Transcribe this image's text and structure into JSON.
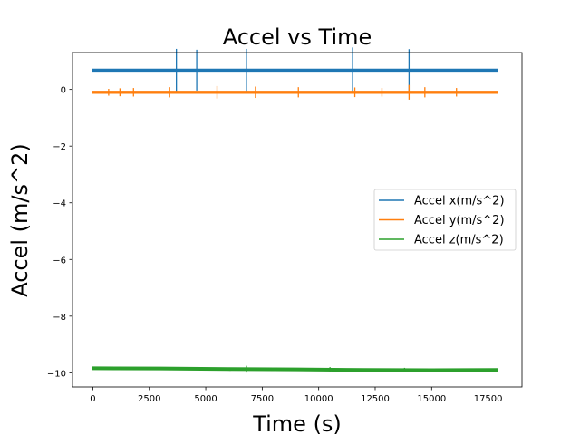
{
  "chart_data": {
    "type": "line",
    "title": "Accel vs Time",
    "xlabel": "Time (s)",
    "ylabel": "Accel (m/s^2)",
    "xlim": [
      -900,
      19000
    ],
    "ylim": [
      -10.5,
      1.3
    ],
    "x_ticks": [
      0,
      2500,
      5000,
      7500,
      10000,
      12500,
      15000,
      17500
    ],
    "x_tick_labels": [
      "0",
      "2500",
      "5000",
      "7500",
      "10000",
      "12500",
      "15000",
      "17500"
    ],
    "y_ticks": [
      0,
      -2,
      -4,
      -6,
      -8,
      -10
    ],
    "y_tick_labels": [
      "0",
      "−2",
      "−4",
      "−6",
      "−8",
      "−10"
    ],
    "grid": false,
    "legend_position": "center-right",
    "series": [
      {
        "name": "Accel x(m/s^2)",
        "color": "#1f77b4",
        "x": [
          0,
          17900
        ],
        "y": [
          0.68,
          0.68
        ],
        "band": 0.06,
        "spikes": [
          [
            3700,
            0.75
          ],
          [
            4600,
            0.72
          ],
          [
            6800,
            0.75
          ],
          [
            11500,
            0.8
          ],
          [
            14000,
            0.74
          ]
        ]
      },
      {
        "name": "Accel y(m/s^2)",
        "color": "#ff7f0e",
        "x": [
          0,
          17900
        ],
        "y": [
          -0.1,
          -0.1
        ],
        "band": 0.06,
        "spikes": [
          [
            700,
            0.12
          ],
          [
            1200,
            0.14
          ],
          [
            1800,
            0.15
          ],
          [
            3400,
            0.18
          ],
          [
            5500,
            0.22
          ],
          [
            7200,
            0.2
          ],
          [
            9100,
            0.18
          ],
          [
            11600,
            0.17
          ],
          [
            12800,
            0.15
          ],
          [
            14000,
            0.26
          ],
          [
            14700,
            0.18
          ],
          [
            16100,
            0.15
          ]
        ]
      },
      {
        "name": "Accel z(m/s^2)",
        "color": "#2ca02c",
        "x": [
          0,
          3000,
          6000,
          9000,
          12000,
          15000,
          17900
        ],
        "y": [
          -9.84,
          -9.85,
          -9.87,
          -9.88,
          -9.9,
          -9.91,
          -9.9
        ],
        "band": 0.08,
        "spikes": [
          [
            6800,
            0.12
          ],
          [
            10500,
            0.09
          ],
          [
            13800,
            0.08
          ]
        ]
      }
    ]
  }
}
